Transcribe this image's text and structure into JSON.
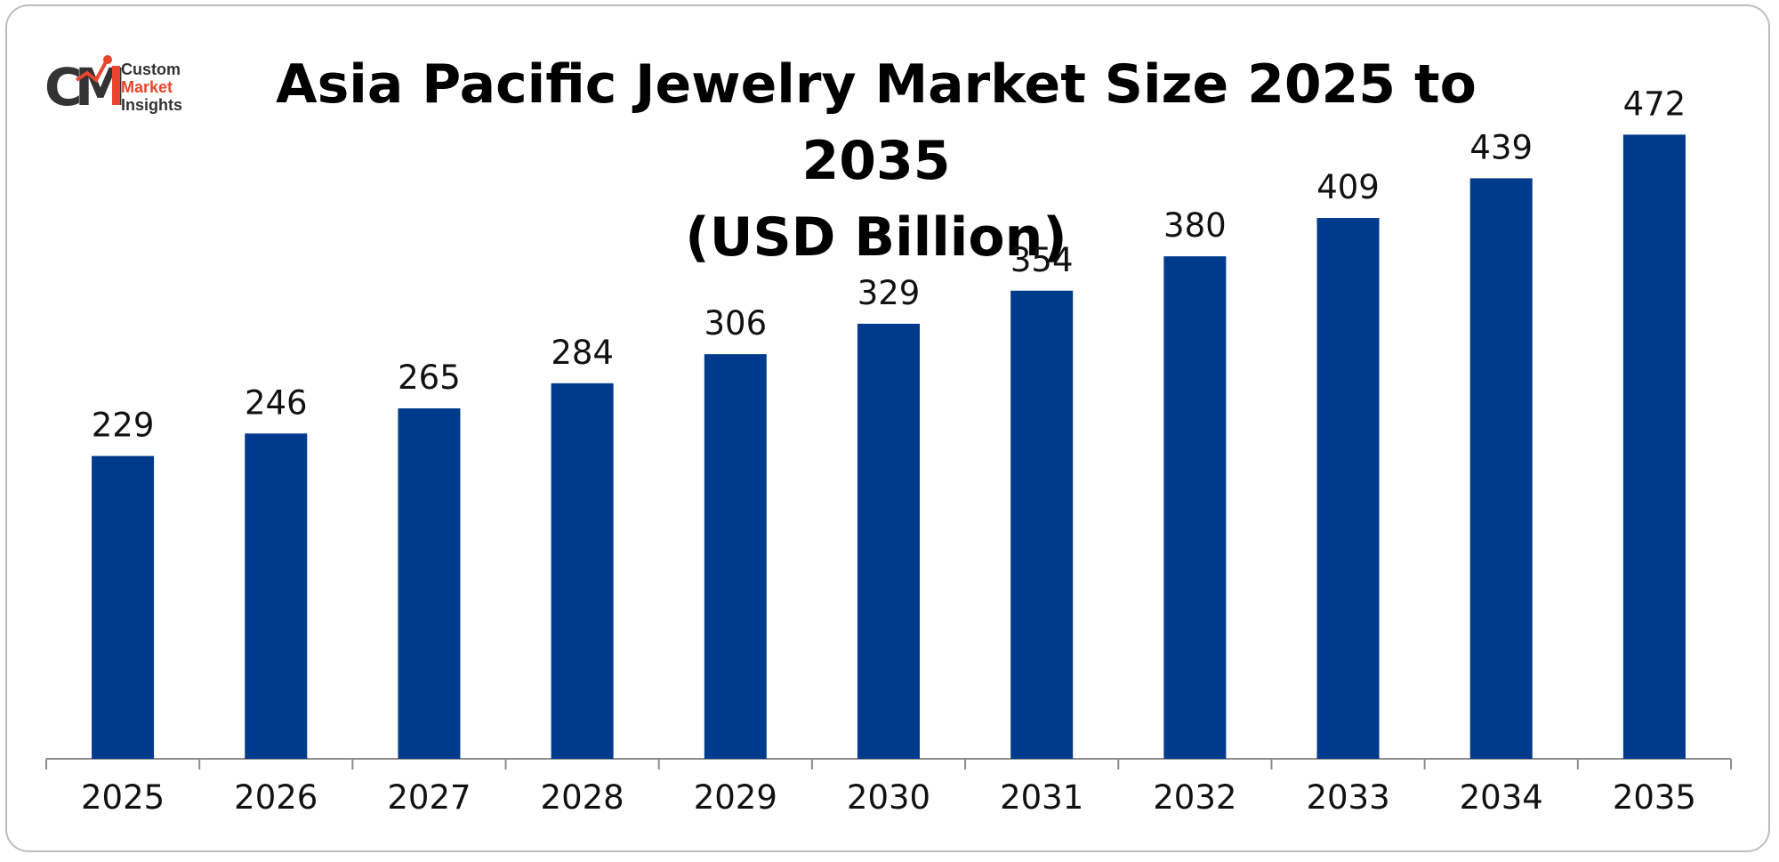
{
  "brand": {
    "line1": "Custom",
    "line2": "Market",
    "line3": "Insights",
    "mark": "CMI",
    "colors": {
      "dark": "#333333",
      "accent": "#e8452c"
    }
  },
  "title": {
    "line1": "Asia Pacific Jewelry Market Size 2025 to 2035",
    "line2": "(USD Billion)"
  },
  "chart_data": {
    "type": "bar",
    "title": "Asia Pacific Jewelry Market Size 2025 to 2035 (USD Billion)",
    "xlabel": "",
    "ylabel": "",
    "categories": [
      "2025",
      "2026",
      "2027",
      "2028",
      "2029",
      "2030",
      "2031",
      "2032",
      "2033",
      "2034",
      "2035"
    ],
    "values": [
      229,
      246,
      265,
      284,
      306,
      329,
      354,
      380,
      409,
      439,
      472
    ],
    "ylim": [
      0,
      500
    ],
    "grid": false,
    "legend": "none",
    "bar_color": "#003a8c",
    "data_labels": true
  }
}
